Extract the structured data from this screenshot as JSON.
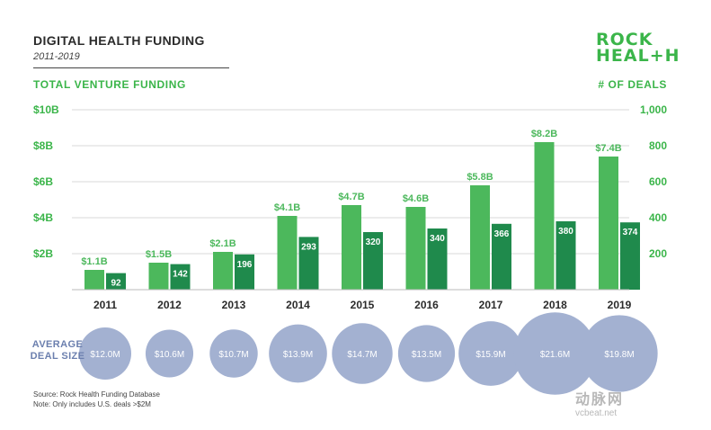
{
  "header": {
    "title": "DIGITAL HEALTH FUNDING",
    "subtitle": "2011-2019",
    "logo_line1": "ROCK",
    "logo_line2": "HEAL+H"
  },
  "legend": {
    "left": "TOTAL VENTURE FUNDING",
    "right": "# OF DEALS"
  },
  "deal_size_label": "AVERAGE DEAL SIZE",
  "footer": {
    "source": "Source: Rock Health Funding Database",
    "note": "Note: Only includes U.S. deals >$2M"
  },
  "watermark": {
    "brand": "动脉网",
    "site": "vcbeat.net"
  },
  "colors": {
    "funding": "#4cb85c",
    "deals": "#1f8a4c",
    "bubbles": "#a3b1d1",
    "grid": "#d9d9d9",
    "axis_text": "#3bb54a"
  },
  "chart_data": {
    "type": "bar",
    "title": "DIGITAL HEALTH FUNDING",
    "categories": [
      "2011",
      "2012",
      "2013",
      "2014",
      "2015",
      "2016",
      "2017",
      "2018",
      "2019"
    ],
    "series": [
      {
        "name": "TOTAL VENTURE FUNDING",
        "axis": "left",
        "unit": "$B",
        "values": [
          1.1,
          1.5,
          2.1,
          4.1,
          4.7,
          4.6,
          5.8,
          8.2,
          7.4
        ],
        "labels": [
          "$1.1B",
          "$1.5B",
          "$2.1B",
          "$4.1B",
          "$4.7B",
          "$4.6B",
          "$5.8B",
          "$8.2B",
          "$7.4B"
        ]
      },
      {
        "name": "# OF DEALS",
        "axis": "right",
        "values": [
          92,
          142,
          196,
          293,
          320,
          340,
          366,
          380,
          374
        ],
        "labels": [
          "92",
          "142",
          "196",
          "293",
          "320",
          "340",
          "366",
          "380",
          "374"
        ]
      }
    ],
    "left_axis": {
      "ylim": [
        0,
        10
      ],
      "ticks": [
        2,
        4,
        6,
        8,
        10
      ],
      "tick_labels": [
        "$2B",
        "$4B",
        "$6B",
        "$8B",
        "$10B"
      ]
    },
    "right_axis": {
      "ylim": [
        0,
        1000
      ],
      "ticks": [
        200,
        400,
        600,
        800,
        1000
      ],
      "tick_labels": [
        "200",
        "400",
        "600",
        "800",
        "1,000"
      ]
    },
    "average_deal_size": {
      "unit": "$M",
      "values": [
        12.0,
        10.6,
        10.7,
        13.9,
        14.7,
        13.5,
        15.9,
        21.6,
        19.8
      ],
      "labels": [
        "$12.0M",
        "$10.6M",
        "$10.7M",
        "$13.9M",
        "$14.7M",
        "$13.5M",
        "$15.9M",
        "$21.6M",
        "$19.8M"
      ]
    },
    "grid": true
  }
}
